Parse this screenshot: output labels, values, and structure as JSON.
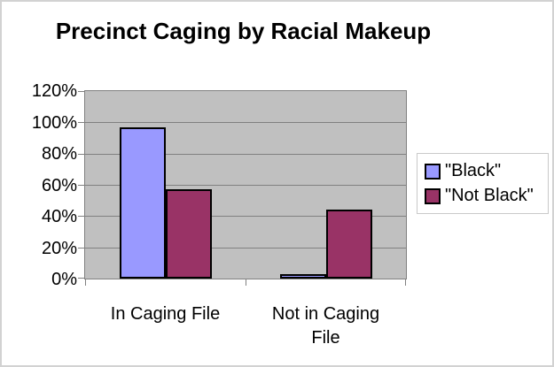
{
  "frame": {
    "background": "#ffffff",
    "border_color": "#d2d2d2"
  },
  "chart_data": {
    "type": "bar",
    "title": "Precinct Caging by Racial Makeup",
    "categories": [
      "In Caging File",
      "Not in Caging File"
    ],
    "category_label_lines": [
      [
        "In Caging File"
      ],
      [
        "Not in Caging",
        "File"
      ]
    ],
    "series": [
      {
        "name": "\"Black\"",
        "color": "#9999FF",
        "values": [
          97,
          3
        ]
      },
      {
        "name": "\"Not Black\"",
        "color": "#993366",
        "values": [
          57,
          44
        ]
      }
    ],
    "xlabel": "",
    "ylabel": "",
    "ylim": [
      0,
      120
    ],
    "ytick_step": 20,
    "ytick_labels": [
      "120%",
      "100%",
      "80%",
      "60%",
      "40%",
      "20%",
      "0%"
    ],
    "grid": true,
    "legend_position": "right",
    "plot_bg": "#c0c0c0",
    "gridline_color": "#808080",
    "axis_color": "#808080",
    "bar_border_color": "#000000",
    "text_color": "#000000"
  }
}
